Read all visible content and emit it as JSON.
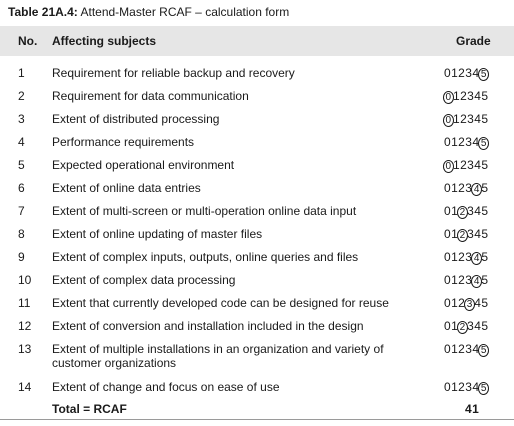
{
  "caption": {
    "label": "Table 21A.4:",
    "title": "Attend-Master RCAF – calculation form"
  },
  "header": {
    "no": "No.",
    "subject": "Affecting subjects",
    "grade": "Grade"
  },
  "rows": [
    {
      "no": "1",
      "subject": "Requirement for reliable backup and recovery",
      "grade": 5
    },
    {
      "no": "2",
      "subject": "Requirement for data communication",
      "grade": 0
    },
    {
      "no": "3",
      "subject": "Extent of distributed processing",
      "grade": 0
    },
    {
      "no": "4",
      "subject": "Performance requirements",
      "grade": 5
    },
    {
      "no": "5",
      "subject": "Expected operational environment",
      "grade": 0
    },
    {
      "no": "6",
      "subject": "Extent of online data entries",
      "grade": 4
    },
    {
      "no": "7",
      "subject": "Extent of multi-screen or multi-operation online data input",
      "grade": 2
    },
    {
      "no": "8",
      "subject": "Extent of online updating of master files",
      "grade": 2
    },
    {
      "no": "9",
      "subject": "Extent of complex inputs, outputs, online queries and files",
      "grade": 4
    },
    {
      "no": "10",
      "subject": "Extent of complex data processing",
      "grade": 4
    },
    {
      "no": "11",
      "subject": "Extent that currently developed code can be designed for reuse",
      "grade": 3
    },
    {
      "no": "12",
      "subject": "Extent of conversion and installation included in the design",
      "grade": 2
    },
    {
      "no": "13",
      "subject": "Extent of multiple installations in an organization and variety of customer organizations",
      "grade": 5
    },
    {
      "no": "14",
      "subject": "Extent of change and focus on ease of use",
      "grade": 5
    }
  ],
  "grade_scale": [
    "0",
    "1",
    "2",
    "3",
    "4",
    "5"
  ],
  "total": {
    "label": "Total = RCAF",
    "value": "41"
  }
}
